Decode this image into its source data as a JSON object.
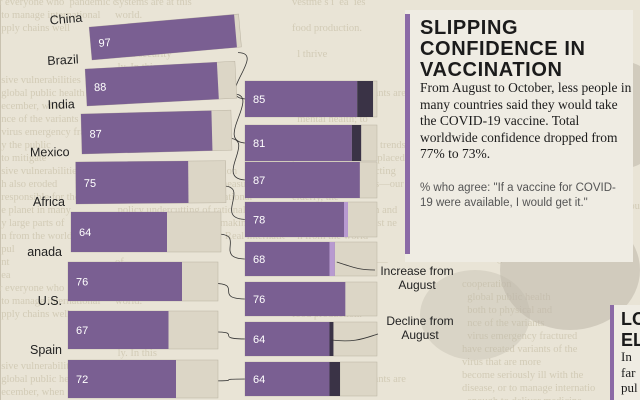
{
  "card": {
    "title": "SLIPPING CONFIDENCE IN VACCINATION",
    "body": "From August to October, less people in many countries said they would take the COVID-19 vaccine. Total worldwide confidence dropped from 77% to 73%.",
    "note": "% who agree: \"If a vaccine for COVID-19 were available, I would get it.\""
  },
  "annotations": {
    "increase": "Increase from August",
    "decline": "Decline from August"
  },
  "next_panel": {
    "title": "LO EL",
    "body": "In far pul"
  },
  "colors": {
    "august_bar": "#7a5f92",
    "october_bar": "#7a5f92",
    "increase": "#b89ad0",
    "decline": "#3a3346",
    "bar_remainder": "#dcd6c6",
    "connector": "#333333",
    "card_accent": "#8b6aa6"
  },
  "chart_data": {
    "type": "bar",
    "categories": [
      "China",
      "Brazil",
      "India",
      "Mexico",
      "South Africa",
      "Canada",
      "U.S.",
      "Spain"
    ],
    "category_labels": [
      "China",
      "Brazil",
      "India",
      "Mexico",
      "Africa",
      "anada",
      "U.S.",
      "Spain"
    ],
    "series": [
      {
        "values": [
          97,
          88,
          87,
          75,
          64,
          76,
          67,
          72
        ]
      },
      {
        "values": [
          85,
          81,
          87,
          78,
          68,
          76,
          64,
          64
        ]
      }
    ],
    "ylim": [
      0,
      100
    ]
  },
  "bg_lines": [
    "ir everyone who  pandemic discourse around the   systems are at this   vestme s i  ea  ies",
    "  to manage international   world.          moment undermining   is  le   e  ur",
    "  pply chains well      food production.   es to climate change in   ial l     mo",
    "    were most n      communications   countries. The need for   se    a",
    "    onal security     l thrive     thinking and careful    rt ation to counter the",
    "    ly. In this         al public     exposes how unprepared   s.      s",
    "  sive vulnerabilities         cooperation     Meanwhile, the concerns",
    "  global public health   coordinated     SARS-CoV-2 variants are",
    "  ecember, when       As the threat of     both to physical and",
    "  nce of the variants   level of trust in the     mental health; to",
    "  virus emergency fractured     contribute poorly m   ust mutations",
    "  y the public        sharing ideological trends   have created variants of the",
    "  to mitigate      pandemic is often replaced   virus that are more      beds to treat everyone who",
    "  sive vulnerabilities   consensus as the justification   transmissible. Protecting   become seriously ill with the",
    "  h also eroded   vulnerable public health measures.   precious populations—our   disease, or to manage internatio",
    "  responsible for the   cuts and public, the international   elderly, the     enough to deliver medicine",
    "  e planet in many    policy undercutting of rationality   and equipment when and",
    "  y large parts of     in discourse and policy making   where they were most ne",
    "  n from the world   a response to COVID-19  Real international cooperation",
    "  pul   le     efforts to deliver   requires speedy action",
    "  nt   of    ones of nuclear war—   reduce those vulnerabil",
    "  ea            ily enough   to publish preliminary findings   to create"
  ]
}
